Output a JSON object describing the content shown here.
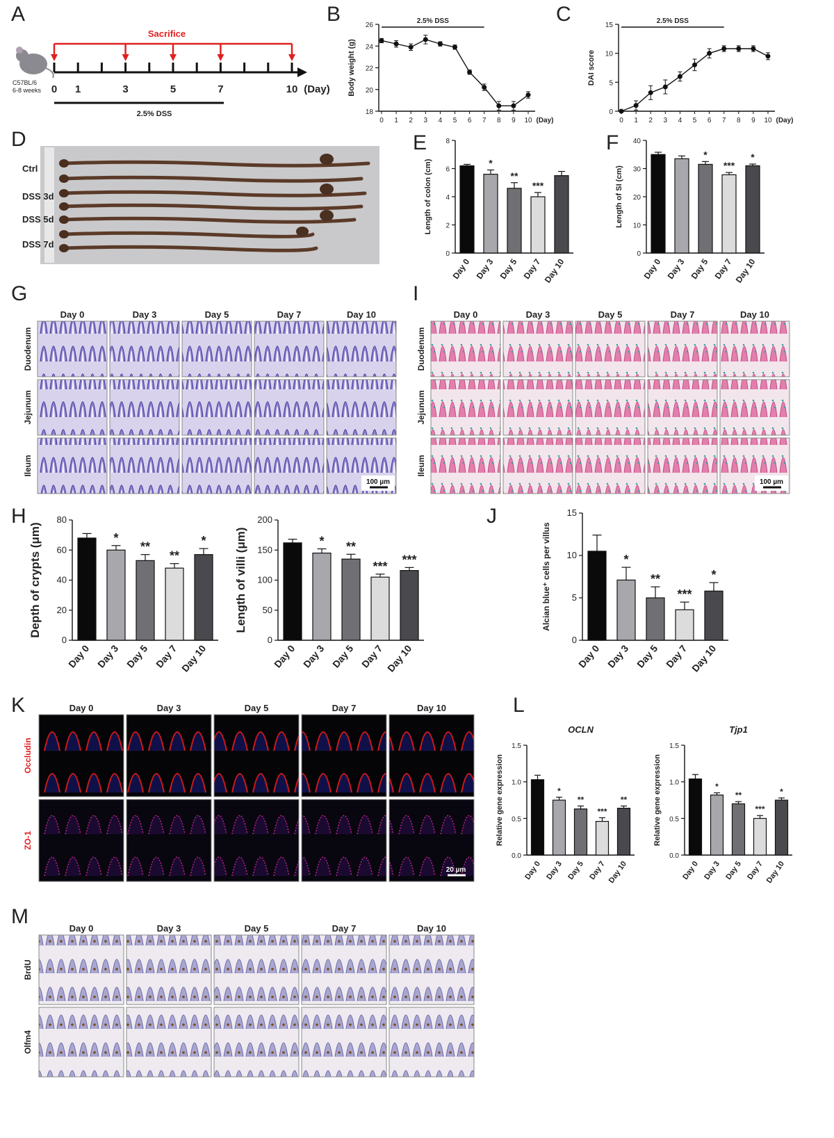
{
  "panels": {
    "A": {
      "label": "A",
      "mouse_strain": "C57BL/6",
      "mouse_age": "6-8 weeks",
      "sacrifice_label": "Sacrifice",
      "days": [
        "0",
        "1",
        "3",
        "5",
        "7",
        "10"
      ],
      "unit": "(Day)",
      "treatment": "2.5% DSS"
    },
    "D": {
      "label": "D",
      "rows": [
        "Ctrl",
        "DSS 3d",
        "DSS 5d",
        "DSS 7d"
      ]
    },
    "G": {
      "label": "G",
      "days": [
        "Day 0",
        "Day 3",
        "Day 5",
        "Day 7",
        "Day 10"
      ],
      "rows": [
        "Duodenum",
        "Jejunum",
        "Ileum"
      ],
      "scale": "100 µm",
      "stain_color": "#8a8ad0"
    },
    "I": {
      "label": "I",
      "days": [
        "Day 0",
        "Day 3",
        "Day 5",
        "Day 7",
        "Day 10"
      ],
      "rows": [
        "Duodenum",
        "Jejunum",
        "Ileum"
      ],
      "scale": "100 µm",
      "stain_color": "#e07aa8"
    },
    "K": {
      "label": "K",
      "days": [
        "Day 0",
        "Day 3",
        "Day 5",
        "Day 7",
        "Day 10"
      ],
      "rows": [
        "Occludin",
        "ZO-1"
      ],
      "scale": "20 µm",
      "row_label_color": "#e02020"
    },
    "L": {
      "label": "L"
    },
    "M": {
      "label": "M",
      "days": [
        "Day 0",
        "Day 3",
        "Day 5",
        "Day 7",
        "Day 10"
      ],
      "rows": [
        "BrdU",
        "Olfm4"
      ],
      "stain_color": "#b9a88e"
    },
    "H": {
      "label": "H"
    },
    "J": {
      "label": "J"
    },
    "B": {
      "label": "B"
    },
    "C": {
      "label": "C"
    },
    "E": {
      "label": "E"
    },
    "F": {
      "label": "F"
    }
  },
  "chart_data": [
    {
      "id": "B",
      "type": "line",
      "banner": "2.5% DSS",
      "x": [
        0,
        1,
        2,
        3,
        4,
        5,
        6,
        7,
        8,
        9,
        10
      ],
      "xticks": [
        "0",
        "1",
        "2",
        "3",
        "4",
        "5",
        "6",
        "7",
        "8",
        "9",
        "10"
      ],
      "xunit": "(Day)",
      "values": [
        24.5,
        24.2,
        23.9,
        24.6,
        24.2,
        23.9,
        21.6,
        20.2,
        18.5,
        18.5,
        19.5
      ],
      "errors": [
        0.2,
        0.3,
        0.3,
        0.4,
        0.2,
        0.2,
        0.2,
        0.3,
        0.4,
        0.4,
        0.3
      ],
      "ylabel": "Body weight (g)",
      "yticks": [
        18,
        20,
        22,
        24,
        26
      ],
      "ylim": [
        18,
        26
      ]
    },
    {
      "id": "C",
      "type": "line",
      "banner": "2.5% DSS",
      "x": [
        0,
        1,
        2,
        3,
        4,
        5,
        6,
        7,
        8,
        9,
        10
      ],
      "xticks": [
        "0",
        "1",
        "2",
        "3",
        "4",
        "5",
        "6",
        "7",
        "8",
        "9",
        "10"
      ],
      "xunit": "(Day)",
      "values": [
        0,
        1,
        3.2,
        4.2,
        6.0,
        8.0,
        10.0,
        10.8,
        10.8,
        10.8,
        9.5
      ],
      "errors": [
        0,
        0.8,
        1.2,
        1.2,
        0.8,
        1.0,
        0.8,
        0.5,
        0.5,
        0.5,
        0.6
      ],
      "ylabel": "DAI score",
      "yticks": [
        0,
        5,
        10,
        15
      ],
      "ylim": [
        0,
        15
      ]
    },
    {
      "id": "E",
      "type": "bar",
      "categories": [
        "Day 0",
        "Day 3",
        "Day 5",
        "Day 7",
        "Day 10"
      ],
      "values": [
        6.2,
        5.6,
        4.6,
        4.0,
        5.5
      ],
      "errors": [
        0.1,
        0.3,
        0.4,
        0.3,
        0.3
      ],
      "sig": [
        "",
        "*",
        "**",
        "***",
        ""
      ],
      "ylabel": "Length of colon (cm)",
      "yticks": [
        0,
        2,
        4,
        6,
        8
      ],
      "ylim": [
        0,
        8
      ]
    },
    {
      "id": "F",
      "type": "bar",
      "categories": [
        "Day 0",
        "Day 3",
        "Day 5",
        "Day 7",
        "Day 10"
      ],
      "values": [
        35,
        33.5,
        31.5,
        27.8,
        31
      ],
      "errors": [
        0.8,
        1.0,
        1.0,
        0.8,
        0.6
      ],
      "sig": [
        "",
        "",
        "*",
        "***",
        "*"
      ],
      "ylabel": "Length of SI (cm)",
      "yticks": [
        0,
        10,
        20,
        30,
        40
      ],
      "ylim": [
        0,
        40
      ]
    },
    {
      "id": "H1",
      "type": "bar",
      "categories": [
        "Day 0",
        "Day 3",
        "Day 5",
        "Day 7",
        "Day 10"
      ],
      "values": [
        68,
        60,
        53,
        48,
        57
      ],
      "errors": [
        3,
        3,
        4,
        3,
        4
      ],
      "sig": [
        "",
        "*",
        "**",
        "**",
        "*"
      ],
      "ylabel": "Depth of crypts (μm)",
      "yticks": [
        0,
        20,
        40,
        60,
        80
      ],
      "ylim": [
        0,
        80
      ]
    },
    {
      "id": "H2",
      "type": "bar",
      "categories": [
        "Day 0",
        "Day 3",
        "Day 5",
        "Day 7",
        "Day 10"
      ],
      "values": [
        162,
        145,
        135,
        105,
        116
      ],
      "errors": [
        6,
        7,
        8,
        5,
        5
      ],
      "sig": [
        "",
        "*",
        "**",
        "***",
        "***"
      ],
      "ylabel": "Length of villi (μm)",
      "yticks": [
        0,
        50,
        100,
        150,
        200
      ],
      "ylim": [
        0,
        200
      ]
    },
    {
      "id": "J",
      "type": "bar",
      "categories": [
        "Day 0",
        "Day 3",
        "Day 5",
        "Day 7",
        "Day 10"
      ],
      "values": [
        10.5,
        7.1,
        5.0,
        3.6,
        5.8
      ],
      "errors": [
        1.9,
        1.5,
        1.3,
        0.9,
        1.0
      ],
      "sig": [
        "",
        "*",
        "**",
        "***",
        "*"
      ],
      "ylabel": "Alcian blue⁺ cells per villus",
      "yticks": [
        0,
        5,
        10,
        15
      ],
      "ylim": [
        0,
        15
      ]
    },
    {
      "id": "L1",
      "type": "bar",
      "title": "OCLN",
      "categories": [
        "Day 0",
        "Day 3",
        "Day 5",
        "Day 7",
        "Day 10"
      ],
      "values": [
        1.03,
        0.75,
        0.63,
        0.46,
        0.64
      ],
      "errors": [
        0.06,
        0.04,
        0.04,
        0.05,
        0.03
      ],
      "sig": [
        "",
        "*",
        "**",
        "***",
        "**"
      ],
      "ylabel": "Relative gene expression",
      "yticks": [
        "0.0",
        "0.5",
        "1.0",
        "1.5"
      ],
      "ylim": [
        0,
        1.5
      ]
    },
    {
      "id": "L2",
      "type": "bar",
      "title": "Tjp1",
      "categories": [
        "Day 0",
        "Day 3",
        "Day 5",
        "Day 7",
        "Day 10"
      ],
      "values": [
        1.04,
        0.82,
        0.7,
        0.5,
        0.75
      ],
      "errors": [
        0.06,
        0.03,
        0.03,
        0.04,
        0.03
      ],
      "sig": [
        "",
        "*",
        "**",
        "***",
        "*"
      ],
      "ylabel": "Relative gene expression",
      "yticks": [
        "0.0",
        "0.5",
        "1.0",
        "1.5"
      ],
      "ylim": [
        0,
        1.5
      ]
    }
  ],
  "colors": {
    "bars": [
      "#0a0a0a",
      "#a8a8ac",
      "#707074",
      "#dcdcdc",
      "#4a4a4e"
    ],
    "red": "#e02020"
  }
}
